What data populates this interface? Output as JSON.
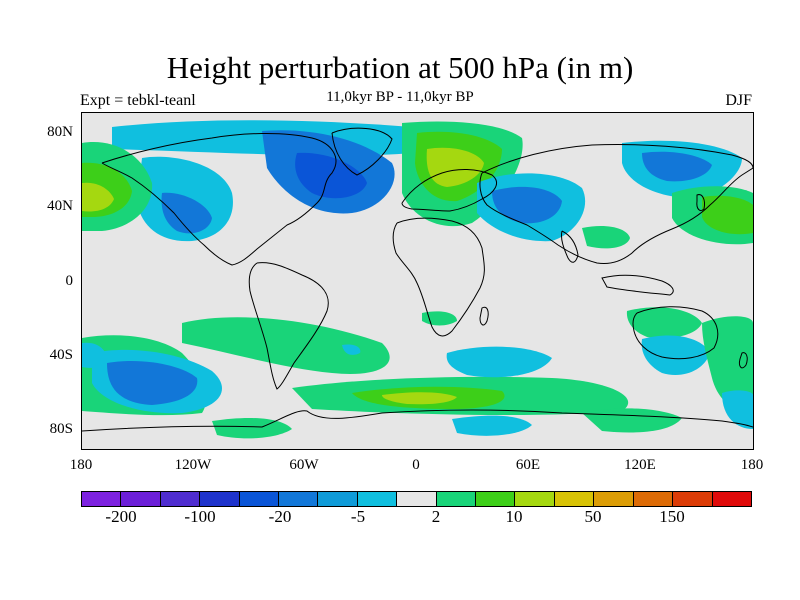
{
  "title": "Height perturbation at 500 hPa (in m)",
  "subtitle": "11,0kyr BP - 11,0kyr BP",
  "left_label": "Expt = tebkl-teanl",
  "right_label": "DJF",
  "chart_data": {
    "type": "heatmap",
    "projection": "cylindrical-equidistant",
    "x_ticks": [
      "180",
      "120W",
      "60W",
      "0",
      "60E",
      "120E",
      "180"
    ],
    "y_ticks": [
      "80N",
      "40N",
      "0",
      "40S",
      "80S"
    ],
    "xlim": [
      -180,
      180
    ],
    "ylim": [
      -90,
      90
    ],
    "colorbar": {
      "colors": [
        "#7d22e0",
        "#6c1fd8",
        "#4f2dd0",
        "#1e33cc",
        "#0a55d7",
        "#1277d8",
        "#0f9bd8",
        "#10bfdf",
        "#e6e6e6",
        "#19d479",
        "#3dcf19",
        "#a5d810",
        "#d8c306",
        "#dc9d06",
        "#dd6b06",
        "#dc3c07",
        "#e00a0a"
      ],
      "labels": [
        "-200",
        "-100",
        "-20",
        "-5",
        "2",
        "10",
        "50",
        "150"
      ]
    }
  }
}
